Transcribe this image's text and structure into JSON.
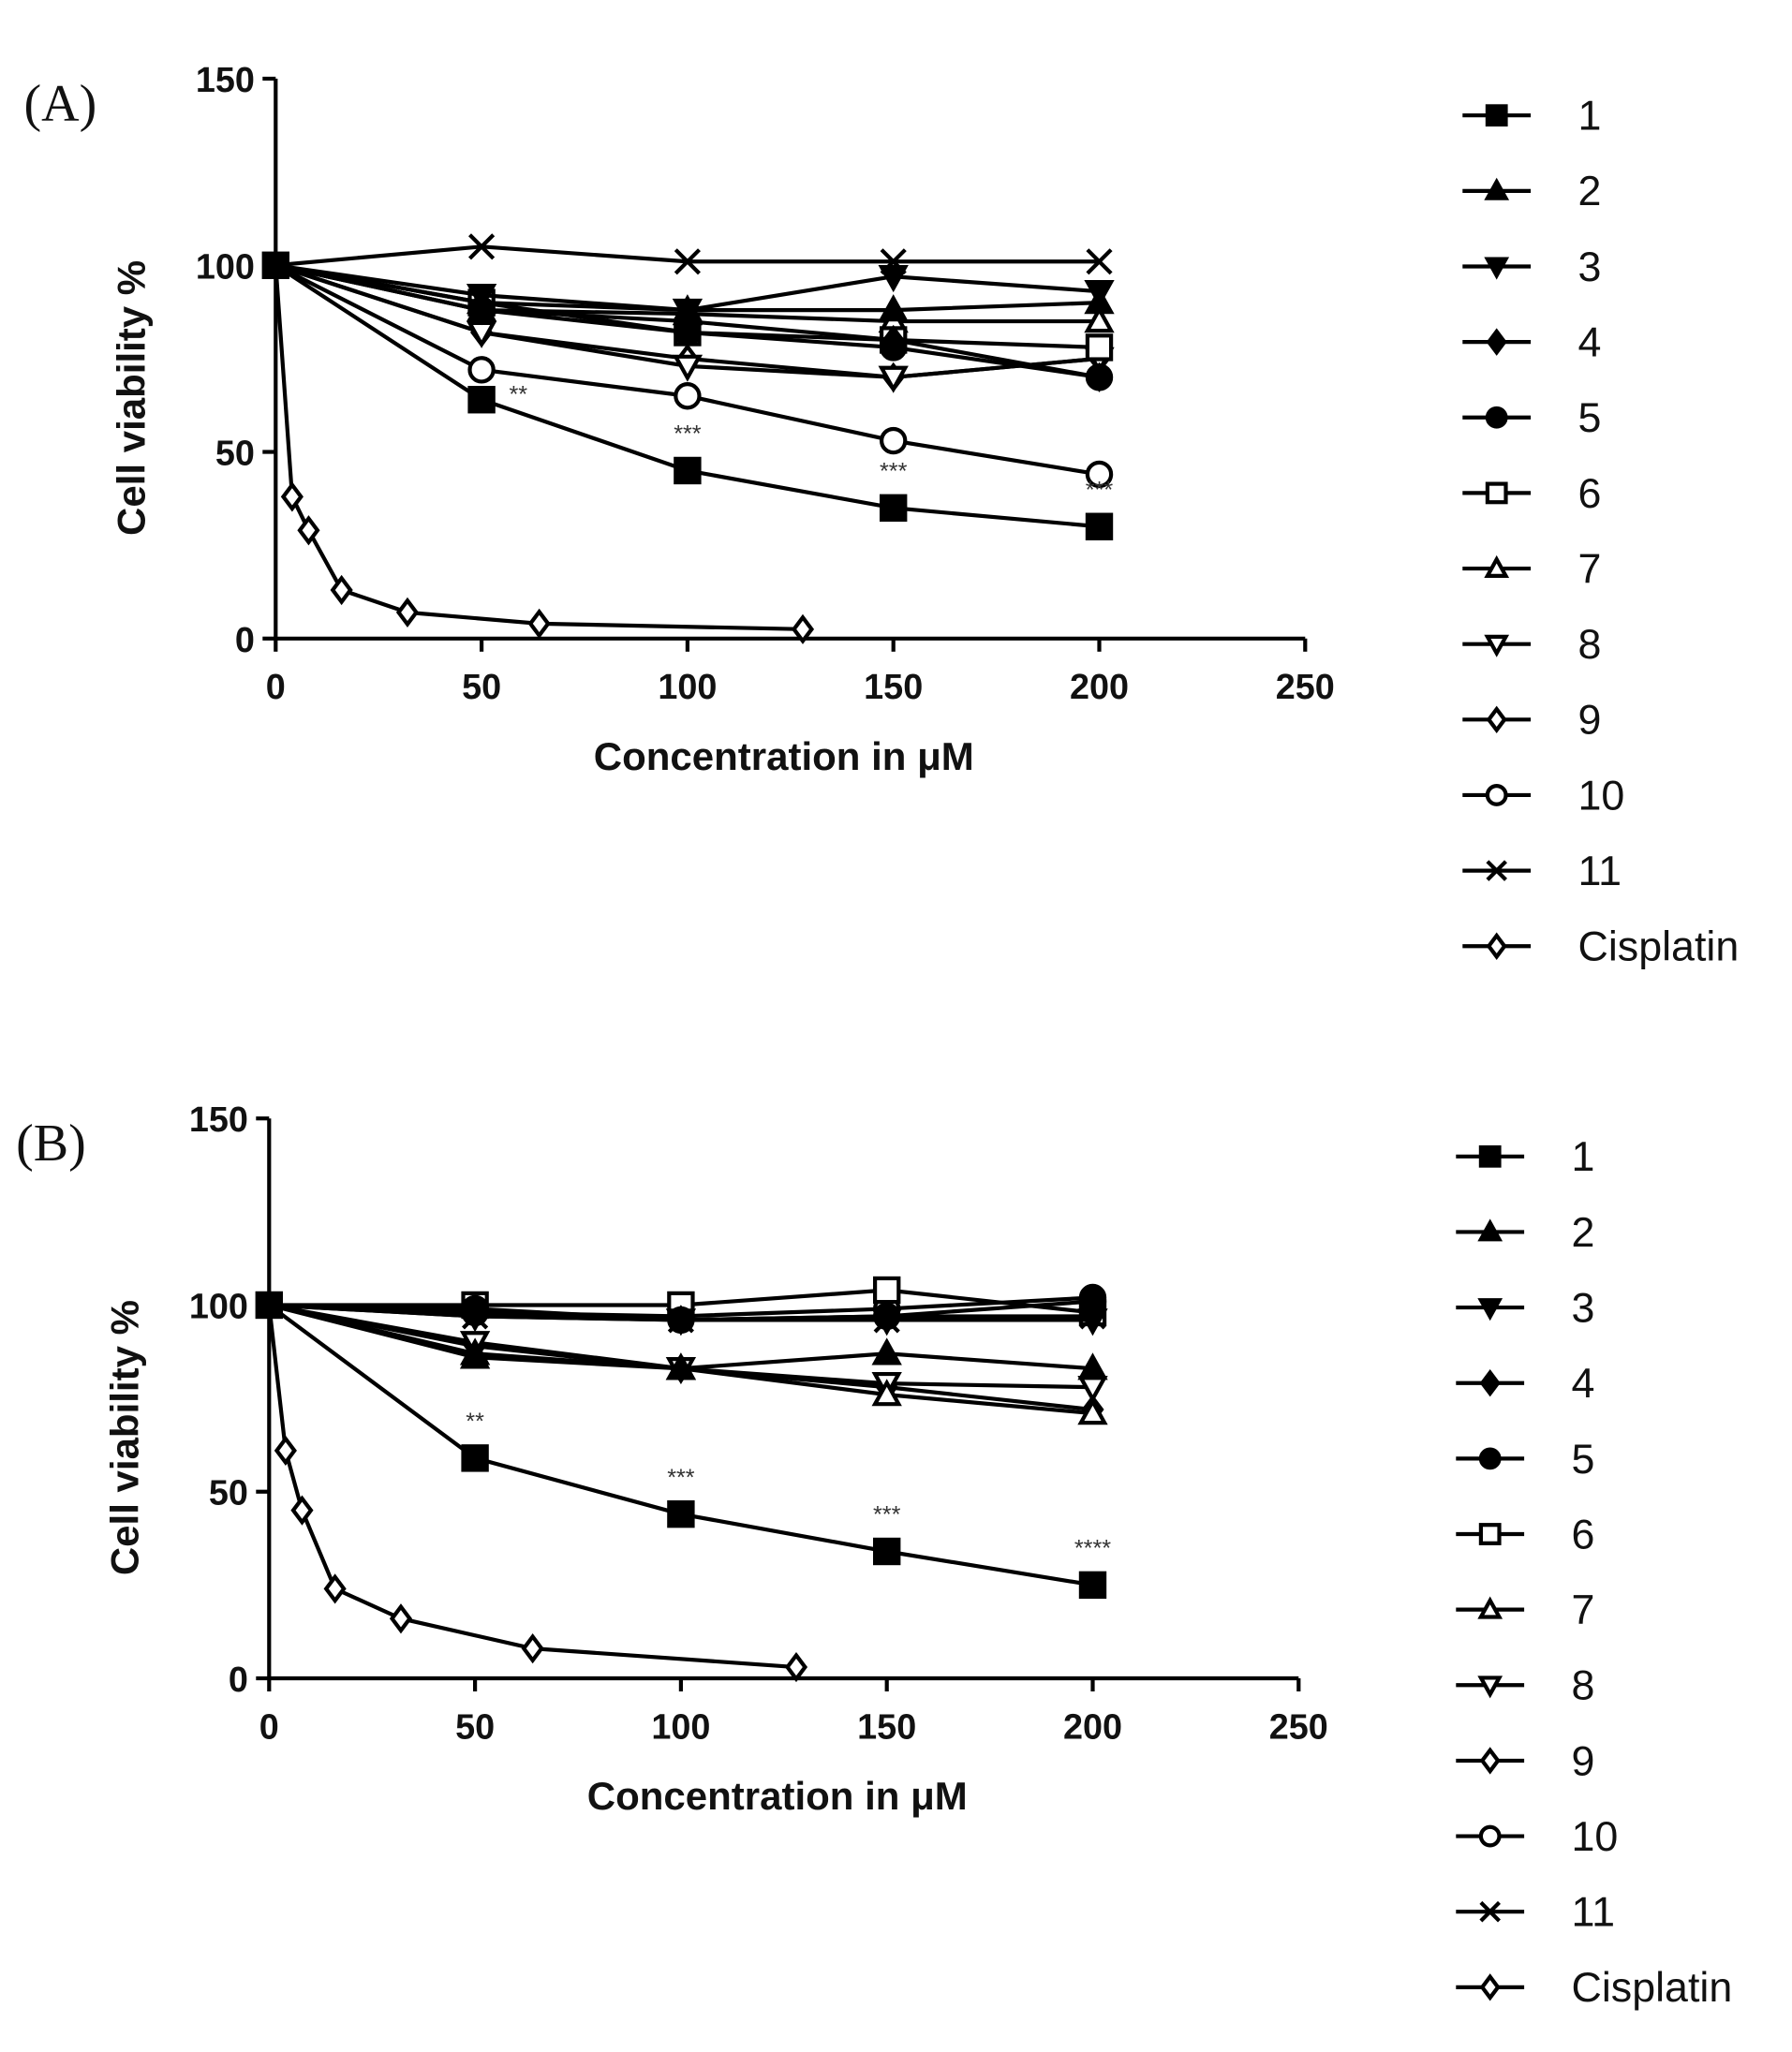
{
  "chart_data": [
    {
      "type": "line",
      "panel_label": "(A)",
      "xlabel": "Concentration in μM",
      "ylabel": "Cell viability %",
      "xlim": [
        0,
        250
      ],
      "ylim": [
        0,
        150
      ],
      "xticks": [
        0,
        50,
        100,
        150,
        200,
        250
      ],
      "yticks": [
        0,
        50,
        100,
        150
      ],
      "grid": false,
      "legend_placement": "right",
      "x": [
        0,
        50,
        100,
        150,
        200
      ],
      "series": [
        {
          "name": "1",
          "marker": "square-filled",
          "values": [
            100,
            64,
            45,
            35,
            30
          ]
        },
        {
          "name": "2",
          "marker": "triangle-up-filled",
          "values": [
            100,
            90,
            88,
            88,
            90
          ]
        },
        {
          "name": "3",
          "marker": "triangle-down-filled",
          "values": [
            100,
            92,
            88,
            97,
            93
          ]
        },
        {
          "name": "4",
          "marker": "diamond-filled",
          "values": [
            100,
            88,
            85,
            80,
            70
          ]
        },
        {
          "name": "5",
          "marker": "circle-filled",
          "values": [
            100,
            88,
            82,
            78,
            70
          ]
        },
        {
          "name": "6",
          "marker": "square-open",
          "values": [
            100,
            90,
            82,
            80,
            78
          ]
        },
        {
          "name": "7",
          "marker": "triangle-up-open",
          "values": [
            100,
            88,
            87,
            85,
            85
          ]
        },
        {
          "name": "8",
          "marker": "triangle-down-open",
          "values": [
            100,
            82,
            73,
            70,
            75
          ]
        },
        {
          "name": "9",
          "marker": "diamond-open",
          "values": [
            100,
            82,
            75,
            70,
            75
          ]
        },
        {
          "name": "10",
          "marker": "circle-open",
          "values": [
            100,
            72,
            65,
            53,
            44
          ]
        },
        {
          "name": "11",
          "marker": "x",
          "values": [
            100,
            105,
            101,
            101,
            101
          ]
        },
        {
          "name": "Cisplatin",
          "marker": "diamond-open",
          "x": [
            0,
            4,
            8,
            16,
            32,
            64,
            128
          ],
          "values": [
            100,
            38,
            29,
            13,
            7,
            4,
            2.5
          ]
        }
      ],
      "annotations": [
        {
          "x": 50,
          "series": "1",
          "text": "**"
        },
        {
          "x": 100,
          "series": "1",
          "text": "***"
        },
        {
          "x": 150,
          "series": "1",
          "text": "***"
        },
        {
          "x": 200,
          "series": "1",
          "text": "***"
        }
      ]
    },
    {
      "type": "line",
      "panel_label": "(B)",
      "xlabel": "Concentration in μM",
      "ylabel": "Cell viability %",
      "xlim": [
        0,
        250
      ],
      "ylim": [
        0,
        150
      ],
      "xticks": [
        0,
        50,
        100,
        150,
        200,
        250
      ],
      "yticks": [
        0,
        50,
        100,
        150
      ],
      "grid": false,
      "legend_placement": "right",
      "x": [
        0,
        50,
        100,
        150,
        200
      ],
      "series": [
        {
          "name": "1",
          "marker": "square-filled",
          "values": [
            100,
            59,
            44,
            34,
            25
          ]
        },
        {
          "name": "2",
          "marker": "triangle-up-filled",
          "values": [
            100,
            87,
            83,
            87,
            83
          ]
        },
        {
          "name": "3",
          "marker": "triangle-down-filled",
          "values": [
            100,
            97,
            96,
            96,
            96
          ]
        },
        {
          "name": "4",
          "marker": "diamond-filled",
          "values": [
            100,
            98,
            96,
            97,
            97
          ]
        },
        {
          "name": "5",
          "marker": "circle-filled",
          "values": [
            100,
            99,
            96,
            97,
            101
          ]
        },
        {
          "name": "6",
          "marker": "square-open",
          "values": [
            100,
            100,
            100,
            104,
            98
          ]
        },
        {
          "name": "7",
          "marker": "triangle-up-open",
          "values": [
            100,
            86,
            83,
            76,
            71
          ]
        },
        {
          "name": "8",
          "marker": "triangle-down-open",
          "values": [
            100,
            90,
            83,
            79,
            78
          ]
        },
        {
          "name": "9",
          "marker": "diamond-open",
          "values": [
            100,
            89,
            83,
            78,
            72
          ]
        },
        {
          "name": "10",
          "marker": "circle-open",
          "values": [
            100,
            98,
            97,
            99,
            102
          ]
        },
        {
          "name": "11",
          "marker": "x",
          "values": [
            100,
            97,
            96,
            96,
            97
          ]
        },
        {
          "name": "Cisplatin",
          "marker": "diamond-open",
          "x": [
            0,
            4,
            8,
            16,
            32,
            64,
            128
          ],
          "values": [
            100,
            61,
            45,
            24,
            16,
            8,
            3
          ]
        }
      ],
      "annotations": [
        {
          "x": 50,
          "series": "1",
          "text": "**"
        },
        {
          "x": 100,
          "series": "1",
          "text": "***"
        },
        {
          "x": 150,
          "series": "1",
          "text": "***"
        },
        {
          "x": 200,
          "series": "1",
          "text": "****"
        }
      ]
    }
  ]
}
